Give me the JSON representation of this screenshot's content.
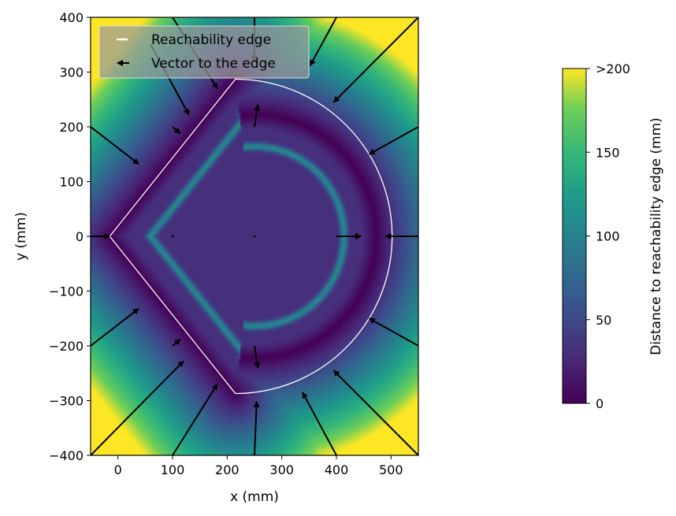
{
  "chart_data": {
    "type": "heatmap",
    "title": "",
    "xlabel": "x (mm)",
    "ylabel": "y (mm)",
    "xlim": [
      -50,
      550
    ],
    "ylim": [
      -400,
      400
    ],
    "x_ticks": [
      {
        "value": 0,
        "label": "0"
      },
      {
        "value": 100,
        "label": "100"
      },
      {
        "value": 200,
        "label": "200"
      },
      {
        "value": 300,
        "label": "300"
      },
      {
        "value": 400,
        "label": "400"
      },
      {
        "value": 500,
        "label": "500"
      }
    ],
    "y_ticks": [
      {
        "value": 400,
        "label": "400"
      },
      {
        "value": 300,
        "label": "300"
      },
      {
        "value": 200,
        "label": "200"
      },
      {
        "value": 100,
        "label": "100"
      },
      {
        "value": 0,
        "label": "0"
      },
      {
        "value": -100,
        "label": "−100"
      },
      {
        "value": -200,
        "label": "−200"
      },
      {
        "value": -300,
        "label": "−300"
      },
      {
        "value": -400,
        "label": "−400"
      }
    ],
    "grid": false,
    "colormap": "viridis",
    "colorbar": {
      "label": "Distance to reachability edge (mm)",
      "range": [
        0,
        200
      ],
      "ticks": [
        {
          "value": 0,
          "label": "0"
        },
        {
          "value": 50,
          "label": "50"
        },
        {
          "value": 100,
          "label": "100"
        },
        {
          "value": 150,
          "label": "150"
        },
        {
          "value": 200,
          "label": ">200"
        }
      ]
    },
    "reachability_edge": {
      "name": "Reachability edge",
      "color": "#ffffff",
      "arc_center": [
        250,
        0
      ],
      "arc_radius": 222,
      "points": [
        [
          -15,
          0
        ],
        [
          215,
          287
        ],
        [
          215,
          -287
        ]
      ]
    },
    "legend": {
      "placement": "upper-left",
      "entries": [
        "Reachability edge",
        "Vector to the edge"
      ]
    },
    "vectors": {
      "name": "Vector to the edge",
      "color": "#000000",
      "items": [
        {
          "x": -50,
          "y": 0,
          "u": 35,
          "v": 0
        },
        {
          "x": 100,
          "y": 0,
          "u": 1,
          "v": 0
        },
        {
          "x": 250,
          "y": 0,
          "u": 1,
          "v": 0
        },
        {
          "x": 400,
          "y": 0,
          "u": 45,
          "v": 0
        },
        {
          "x": 550,
          "y": 0,
          "u": -60,
          "v": 0
        },
        {
          "x": -50,
          "y": 200,
          "u": 88,
          "v": -68
        },
        {
          "x": 100,
          "y": 200,
          "u": 14,
          "v": -12
        },
        {
          "x": 250,
          "y": 200,
          "u": 6,
          "v": 40
        },
        {
          "x": 400,
          "y": 400,
          "u": -48,
          "v": -88
        },
        {
          "x": 550,
          "y": 200,
          "u": -90,
          "v": -50
        },
        {
          "x": 550,
          "y": 400,
          "u": -155,
          "v": -155
        },
        {
          "x": 100,
          "y": 400,
          "u": 82,
          "v": -130
        },
        {
          "x": 250,
          "y": 400,
          "u": 0,
          "v": -80
        },
        {
          "x": 60,
          "y": 350,
          "u": 70,
          "v": -128
        },
        {
          "x": -50,
          "y": -200,
          "u": 88,
          "v": 68
        },
        {
          "x": 100,
          "y": -200,
          "u": 14,
          "v": 12
        },
        {
          "x": 250,
          "y": -200,
          "u": 6,
          "v": -40
        },
        {
          "x": -50,
          "y": -400,
          "u": 170,
          "v": 172
        },
        {
          "x": 100,
          "y": -400,
          "u": 82,
          "v": 130
        },
        {
          "x": 250,
          "y": -400,
          "u": 4,
          "v": 98
        },
        {
          "x": 400,
          "y": -400,
          "u": -62,
          "v": 115
        },
        {
          "x": 550,
          "y": -400,
          "u": -155,
          "v": 155
        },
        {
          "x": 550,
          "y": -200,
          "u": -90,
          "v": 50
        }
      ]
    }
  }
}
